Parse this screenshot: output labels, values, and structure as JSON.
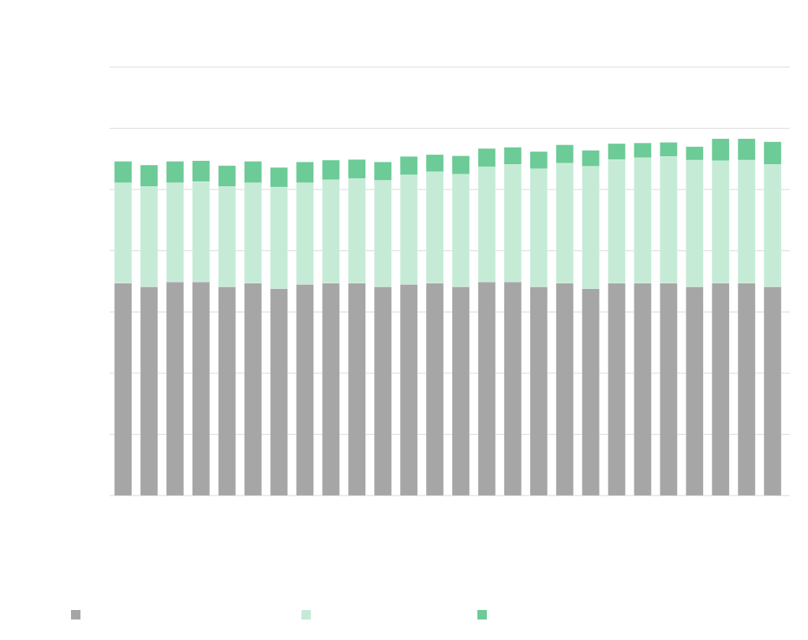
{
  "chart_data": {
    "type": "bar",
    "stacked": true,
    "title": "",
    "xlabel": "",
    "ylabel": "",
    "ylim": [
      0,
      70
    ],
    "y_gridlines": [
      0,
      10,
      20,
      30,
      40,
      50,
      60,
      70
    ],
    "grid": true,
    "legend_placement": "bottom-left",
    "series": [
      {
        "name": "",
        "color": "#a6a6a6",
        "values": [
          34.7,
          34.1,
          34.9,
          34.9,
          34.1,
          34.7,
          33.8,
          34.5,
          34.7,
          34.7,
          34.1,
          34.5,
          34.7,
          34.1,
          34.9,
          34.9,
          34.1,
          34.7,
          33.8,
          34.7,
          34.7,
          34.7,
          34.1,
          34.7,
          34.7,
          34.1
        ]
      },
      {
        "name": "",
        "color": "#c5ebd6",
        "values": [
          16.4,
          16.4,
          16.2,
          16.4,
          16.4,
          16.4,
          16.6,
          16.6,
          16.9,
          17.1,
          17.4,
          17.9,
          18.2,
          18.4,
          18.8,
          19.2,
          19.3,
          19.6,
          20.0,
          20.2,
          20.5,
          20.7,
          20.7,
          20.0,
          20.1,
          20.0
        ]
      },
      {
        "name": "",
        "color": "#6ccb96",
        "values": [
          3.5,
          3.5,
          3.5,
          3.4,
          3.4,
          3.5,
          3.2,
          3.4,
          3.2,
          3.1,
          3.0,
          3.0,
          2.8,
          3.0,
          3.0,
          2.8,
          2.8,
          3.0,
          2.6,
          2.6,
          2.4,
          2.3,
          2.2,
          3.6,
          3.5,
          3.7
        ]
      }
    ]
  }
}
